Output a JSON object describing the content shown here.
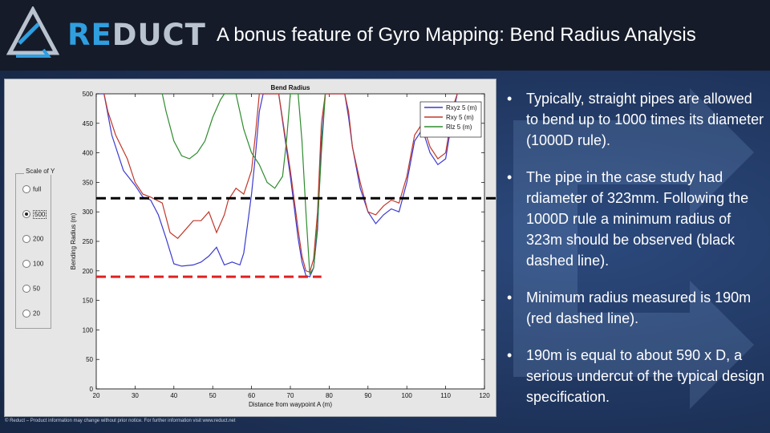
{
  "header": {
    "logo_text_accent": "RE",
    "logo_text_rest": "DUCT",
    "title": "A bonus feature of Gyro Mapping: Bend Radius Analysis"
  },
  "colors": {
    "header_bg": "#151b29",
    "slide_bg": "#1e335a",
    "logo_blue": "#2f9fe0",
    "series_rxyz": "#3a3ad0",
    "series_rxy": "#c0392b",
    "series_rlz": "#2e8b2e",
    "dashed_black": "#000000",
    "dashed_red": "#e02020"
  },
  "scale_panel": {
    "title": "Scale of Y",
    "options": [
      "full",
      "500",
      "200",
      "100",
      "50",
      "20"
    ],
    "selected": "500"
  },
  "chart_data": {
    "type": "line",
    "title": "Bend Radius",
    "xlabel": "Distance from waypoint A (m)",
    "ylabel": "Bending Radius (m)",
    "xlim": [
      20,
      120
    ],
    "ylim": [
      0,
      500
    ],
    "xticks": [
      20,
      30,
      40,
      50,
      60,
      70,
      80,
      90,
      100,
      110,
      120
    ],
    "yticks": [
      0,
      50,
      100,
      150,
      200,
      250,
      300,
      350,
      400,
      450,
      500
    ],
    "grid": false,
    "legend_position": "top-right",
    "series": [
      {
        "name": "Rxyz 5 (m)",
        "color": "#3a3ad0",
        "points": [
          [
            21,
            500
          ],
          [
            22,
            500
          ],
          [
            24,
            430
          ],
          [
            27,
            370
          ],
          [
            30,
            345
          ],
          [
            32,
            325
          ],
          [
            34,
            320
          ],
          [
            36,
            295
          ],
          [
            38,
            255
          ],
          [
            40,
            212
          ],
          [
            42,
            208
          ],
          [
            45,
            210
          ],
          [
            47,
            215
          ],
          [
            49,
            225
          ],
          [
            51,
            240
          ],
          [
            53,
            210
          ],
          [
            55,
            215
          ],
          [
            57,
            210
          ],
          [
            58,
            230
          ],
          [
            59,
            280
          ],
          [
            60,
            330
          ],
          [
            61,
            395
          ],
          [
            62,
            470
          ],
          [
            63,
            500
          ],
          [
            65,
            500
          ],
          [
            67,
            500
          ],
          [
            70,
            360
          ],
          [
            72,
            255
          ],
          [
            73,
            215
          ],
          [
            74,
            192
          ],
          [
            75,
            190
          ],
          [
            76,
            205
          ],
          [
            77,
            270
          ],
          [
            78,
            420
          ],
          [
            79,
            500
          ],
          [
            84,
            500
          ],
          [
            85,
            460
          ],
          [
            86,
            410
          ],
          [
            88,
            340
          ],
          [
            90,
            300
          ],
          [
            92,
            280
          ],
          [
            94,
            295
          ],
          [
            96,
            305
          ],
          [
            98,
            300
          ],
          [
            100,
            350
          ],
          [
            102,
            420
          ],
          [
            104,
            440
          ],
          [
            106,
            400
          ],
          [
            108,
            380
          ],
          [
            110,
            390
          ],
          [
            112,
            470
          ],
          [
            113,
            500
          ]
        ]
      },
      {
        "name": "Rxy 5 (m)",
        "color": "#c0392b",
        "points": [
          [
            22,
            500
          ],
          [
            23,
            470
          ],
          [
            25,
            430
          ],
          [
            28,
            390
          ],
          [
            30,
            350
          ],
          [
            32,
            330
          ],
          [
            34,
            325
          ],
          [
            37,
            315
          ],
          [
            39,
            265
          ],
          [
            41,
            255
          ],
          [
            43,
            270
          ],
          [
            45,
            285
          ],
          [
            47,
            285
          ],
          [
            49,
            300
          ],
          [
            51,
            265
          ],
          [
            53,
            295
          ],
          [
            54,
            320
          ],
          [
            56,
            340
          ],
          [
            58,
            330
          ],
          [
            60,
            370
          ],
          [
            61,
            430
          ],
          [
            62,
            500
          ],
          [
            67,
            500
          ],
          [
            70,
            370
          ],
          [
            72,
            270
          ],
          [
            73,
            225
          ],
          [
            74,
            200
          ],
          [
            75,
            198
          ],
          [
            76,
            220
          ],
          [
            77,
            300
          ],
          [
            78,
            450
          ],
          [
            79,
            500
          ],
          [
            84,
            500
          ],
          [
            85,
            470
          ],
          [
            86,
            410
          ],
          [
            88,
            350
          ],
          [
            90,
            300
          ],
          [
            92,
            295
          ],
          [
            94,
            310
          ],
          [
            96,
            320
          ],
          [
            98,
            315
          ],
          [
            100,
            360
          ],
          [
            102,
            430
          ],
          [
            104,
            450
          ],
          [
            106,
            410
          ],
          [
            108,
            390
          ],
          [
            110,
            400
          ],
          [
            112,
            480
          ],
          [
            113,
            500
          ]
        ]
      },
      {
        "name": "Rlz 5 (m)",
        "color": "#2e8b2e",
        "points": [
          [
            37,
            500
          ],
          [
            38,
            470
          ],
          [
            40,
            420
          ],
          [
            42,
            395
          ],
          [
            44,
            390
          ],
          [
            46,
            400
          ],
          [
            48,
            420
          ],
          [
            50,
            460
          ],
          [
            52,
            490
          ],
          [
            53,
            500
          ],
          [
            56,
            500
          ],
          [
            58,
            440
          ],
          [
            60,
            400
          ],
          [
            62,
            380
          ],
          [
            64,
            350
          ],
          [
            66,
            340
          ],
          [
            68,
            360
          ],
          [
            69,
            420
          ],
          [
            70,
            500
          ],
          [
            72,
            500
          ],
          [
            73,
            420
          ],
          [
            74,
            300
          ],
          [
            75,
            195
          ],
          [
            76,
            205
          ],
          [
            77,
            280
          ],
          [
            78,
            400
          ],
          [
            79,
            500
          ]
        ]
      }
    ],
    "annotations": [
      {
        "type": "hline",
        "style": "dashed",
        "color": "#000000",
        "y": 323
      },
      {
        "type": "hline",
        "style": "dashed",
        "color": "#e02020",
        "y": 190
      }
    ]
  },
  "bullets": [
    "Typically, straight pipes are allowed to bend up to 1000 times its diameter (1000D rule).",
    "The pipe in the case study had rdiameter of 323mm. Following the 1000D rule a minimum radius of 323m should be observed (black dashed line).",
    "Minimum radius measured is 190m (red dashed line).",
    "190m is equal to about 590 x D, a serious undercut of the typical design specification."
  ],
  "bullet_glyph": "•",
  "footer": "© Reduct – Product information may change without prior notice. For further information visit www.reduct.net"
}
